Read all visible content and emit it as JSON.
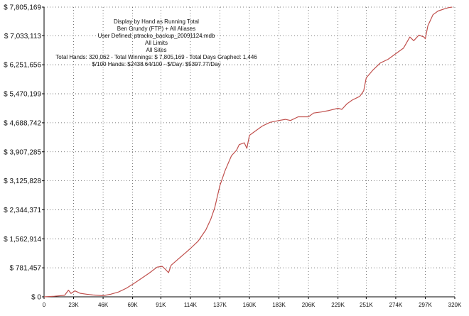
{
  "header": {
    "lines": [
      "Display by Hand as Running Total",
      "Ben Grundy (FTP) + All Aliases",
      "User Defined: ptracko_backup_20091124.mdb",
      "All Limits",
      "All Sites",
      "Total Hands: 320,062 - Total Winnings: $ 7,805,169 - Total Days Graphed: 1,446",
      "$/100 Hands: $2438.64/100 - $/Day: $5397.77/Day"
    ]
  },
  "chart_data": {
    "type": "line",
    "title": "",
    "xlabel": "",
    "ylabel": "",
    "grid": true,
    "xlim": [
      0,
      320000
    ],
    "ylim": [
      0,
      7805169
    ],
    "y_ticks": [
      {
        "value": 0,
        "label": "$ 0"
      },
      {
        "value": 781457,
        "label": "$ 781,457"
      },
      {
        "value": 1562914,
        "label": "$ 1,562,914"
      },
      {
        "value": 2344371,
        "label": "$ 2,344,371"
      },
      {
        "value": 3125828,
        "label": "$ 3,125,828"
      },
      {
        "value": 3907285,
        "label": "$ 3,907,285"
      },
      {
        "value": 4688742,
        "label": "$ 4,688,742"
      },
      {
        "value": 5470199,
        "label": "$ 5,470,199"
      },
      {
        "value": 6251656,
        "label": "$ 6,251,656"
      },
      {
        "value": 7033113,
        "label": "$ 7,033,113"
      },
      {
        "value": 7805169,
        "label": "$ 7,805,169"
      }
    ],
    "x_ticks": [
      {
        "value": 0,
        "label": "0"
      },
      {
        "value": 23000,
        "label": "23K"
      },
      {
        "value": 46000,
        "label": "46K"
      },
      {
        "value": 69000,
        "label": "69K"
      },
      {
        "value": 91000,
        "label": "91K"
      },
      {
        "value": 114000,
        "label": "114K"
      },
      {
        "value": 137000,
        "label": "137K"
      },
      {
        "value": 160000,
        "label": "160K"
      },
      {
        "value": 183000,
        "label": "183K"
      },
      {
        "value": 206000,
        "label": "206K"
      },
      {
        "value": 229000,
        "label": "229K"
      },
      {
        "value": 251000,
        "label": "251K"
      },
      {
        "value": 274000,
        "label": "274K"
      },
      {
        "value": 297000,
        "label": "297K"
      },
      {
        "value": 320000,
        "label": "320K"
      }
    ],
    "series": [
      {
        "color": "#c0504d",
        "points": [
          [
            0,
            0
          ],
          [
            8000,
            15000
          ],
          [
            16000,
            40000
          ],
          [
            19000,
            180000
          ],
          [
            21000,
            90000
          ],
          [
            24000,
            160000
          ],
          [
            26000,
            130000
          ],
          [
            28000,
            95000
          ],
          [
            33000,
            70000
          ],
          [
            38000,
            50000
          ],
          [
            46000,
            30000
          ],
          [
            52000,
            70000
          ],
          [
            58000,
            130000
          ],
          [
            64000,
            230000
          ],
          [
            70000,
            360000
          ],
          [
            76000,
            500000
          ],
          [
            82000,
            640000
          ],
          [
            88000,
            800000
          ],
          [
            92000,
            820000
          ],
          [
            94000,
            760000
          ],
          [
            97000,
            650000
          ],
          [
            99000,
            850000
          ],
          [
            104000,
            1000000
          ],
          [
            110000,
            1180000
          ],
          [
            114000,
            1300000
          ],
          [
            120000,
            1500000
          ],
          [
            126000,
            1800000
          ],
          [
            130000,
            2100000
          ],
          [
            133000,
            2400000
          ],
          [
            135000,
            2700000
          ],
          [
            137000,
            3000000
          ],
          [
            141000,
            3400000
          ],
          [
            146000,
            3800000
          ],
          [
            150000,
            3950000
          ],
          [
            152000,
            4100000
          ],
          [
            156000,
            4150000
          ],
          [
            158000,
            4000000
          ],
          [
            160000,
            4350000
          ],
          [
            164000,
            4450000
          ],
          [
            170000,
            4600000
          ],
          [
            176000,
            4700000
          ],
          [
            183000,
            4750000
          ],
          [
            188000,
            4780000
          ],
          [
            192000,
            4750000
          ],
          [
            198000,
            4850000
          ],
          [
            206000,
            4850000
          ],
          [
            210000,
            4950000
          ],
          [
            216000,
            4980000
          ],
          [
            222000,
            5020000
          ],
          [
            229000,
            5080000
          ],
          [
            232000,
            5050000
          ],
          [
            236000,
            5200000
          ],
          [
            240000,
            5300000
          ],
          [
            246000,
            5400000
          ],
          [
            249000,
            5550000
          ],
          [
            251000,
            5900000
          ],
          [
            256000,
            6100000
          ],
          [
            262000,
            6300000
          ],
          [
            268000,
            6400000
          ],
          [
            274000,
            6550000
          ],
          [
            280000,
            6700000
          ],
          [
            285000,
            7000000
          ],
          [
            288000,
            6900000
          ],
          [
            292000,
            7050000
          ],
          [
            296000,
            7000000
          ],
          [
            297000,
            6950000
          ],
          [
            299000,
            7300000
          ],
          [
            303000,
            7600000
          ],
          [
            307000,
            7700000
          ],
          [
            312000,
            7760000
          ],
          [
            315000,
            7790000
          ],
          [
            318000,
            7805169
          ]
        ]
      }
    ]
  }
}
